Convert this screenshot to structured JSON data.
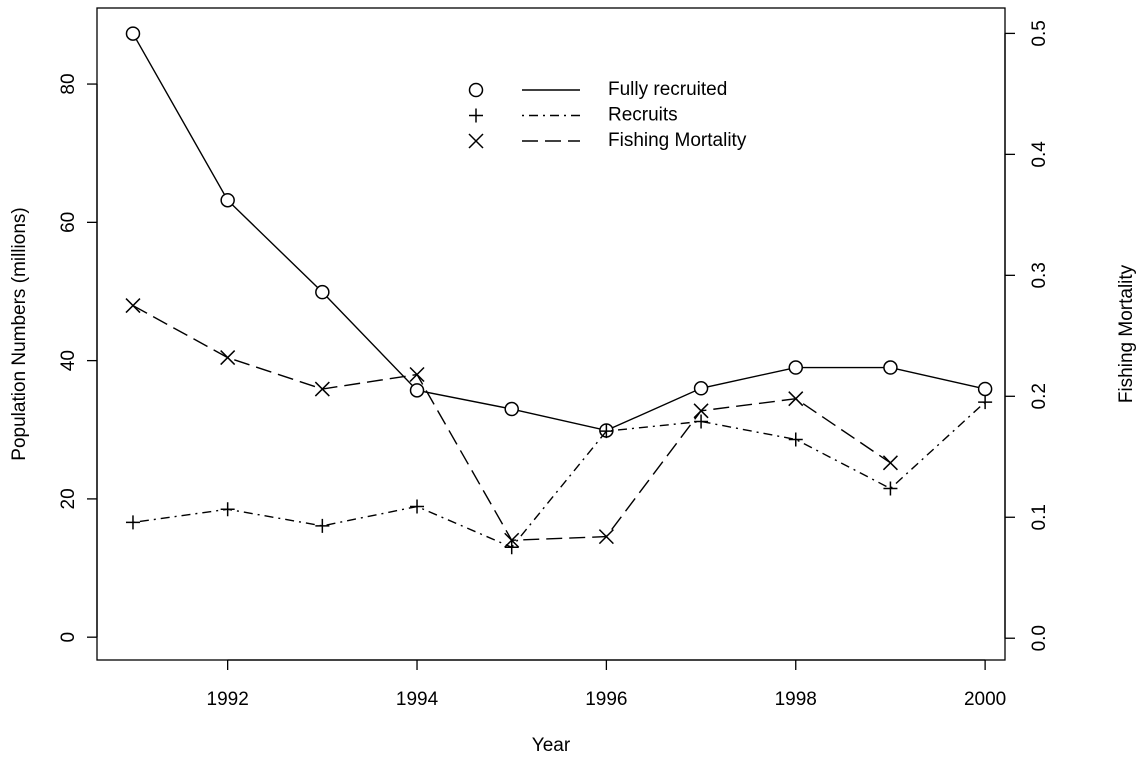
{
  "chart_data": {
    "type": "line",
    "x_label": "Year",
    "y_label": "Population Numbers (millions)",
    "y2_label": "Fishing Mortality",
    "x": [
      1991,
      1992,
      1993,
      1994,
      1995,
      1996,
      1997,
      1998,
      1999,
      2000
    ],
    "xlim": [
      1990.62,
      2000.21
    ],
    "xticks": [
      1992,
      1994,
      1996,
      1998,
      2000
    ],
    "ylim": [
      -3.3,
      91
    ],
    "yticks": [
      0,
      20,
      40,
      60,
      80
    ],
    "y2lim": [
      -0.018,
      0.521
    ],
    "y2ticks": [
      {
        "value": 0,
        "label": "0.0"
      },
      0.1,
      0.2,
      0.3,
      0.4,
      0.5
    ],
    "series": [
      {
        "name": "Fully recruited",
        "color": "#000000",
        "marker": "circle",
        "linestyle": "solid",
        "values": [
          87.3,
          63.2,
          49.9,
          35.7,
          33.0,
          29.9,
          36.0,
          39.0,
          39.0,
          35.9
        ]
      },
      {
        "name": "Recruits",
        "color": "#000000",
        "marker": "plus",
        "linestyle": "dotdash",
        "values": [
          16.6,
          18.5,
          16.1,
          18.9,
          13.0,
          29.8,
          31.2,
          28.6,
          21.5,
          34.0
        ]
      },
      {
        "name": "Fishing Mortality",
        "color": "#000000",
        "marker": "cross",
        "linestyle": "dashed",
        "axis": "y2",
        "values": [
          0.275,
          0.232,
          0.206,
          0.218,
          0.081,
          0.084,
          0.188,
          0.198,
          0.145,
          null
        ]
      }
    ]
  }
}
